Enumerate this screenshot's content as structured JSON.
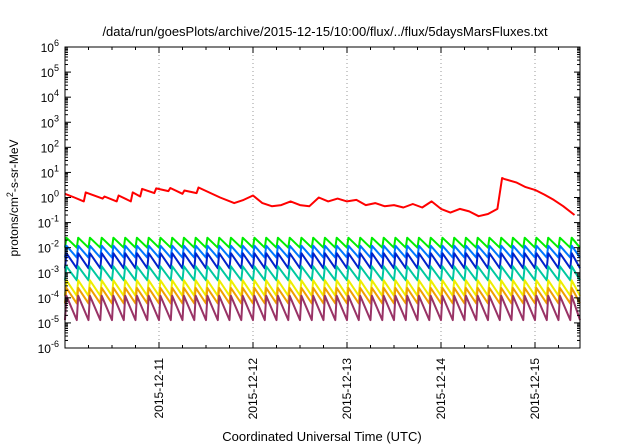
{
  "chart_data": {
    "type": "line",
    "title": "/data/run/goesPlots/archive/2015-12-15/10:00/flux/../flux/5daysMarsFluxes.txt",
    "xlabel": "Coordinated Universal Time (UTC)",
    "ylabel_base": "protons/cm",
    "ylabel_sup": "2",
    "ylabel_rest": "-s-sr-MeV",
    "yscale": "log",
    "ylim_exp": [
      -6,
      6
    ],
    "ytick_base": "10",
    "yticks": [
      {
        "exp": -6,
        "sup": "-6"
      },
      {
        "exp": -5,
        "sup": "-5"
      },
      {
        "exp": -4,
        "sup": "-4"
      },
      {
        "exp": -3,
        "sup": "-3"
      },
      {
        "exp": -2,
        "sup": "-2"
      },
      {
        "exp": -1,
        "sup": "-1"
      },
      {
        "exp": 0,
        "sup": "0"
      },
      {
        "exp": 1,
        "sup": "1"
      },
      {
        "exp": 2,
        "sup": "2"
      },
      {
        "exp": 3,
        "sup": "3"
      },
      {
        "exp": 4,
        "sup": "4"
      },
      {
        "exp": 5,
        "sup": "5"
      },
      {
        "exp": 6,
        "sup": "6"
      }
    ],
    "xlim": [
      "2015-12-10 00:00",
      "2015-12-15 10:00"
    ],
    "xticks": [
      {
        "label": "2015-12-11",
        "day": 1
      },
      {
        "label": "2015-12-12",
        "day": 2
      },
      {
        "label": "2015-12-13",
        "day": 3
      },
      {
        "label": "2015-12-14",
        "day": 4
      },
      {
        "label": "2015-12-15",
        "day": 5
      }
    ],
    "grid": true,
    "x_grid": true,
    "y_grid": false,
    "series": [
      {
        "color": "#ff0000",
        "x_days": [
          0.0,
          0.1,
          0.2,
          0.22,
          0.4,
          0.42,
          0.55,
          0.57,
          0.7,
          0.72,
          0.8,
          0.82,
          0.95,
          0.97,
          1.1,
          1.12,
          1.25,
          1.27,
          1.4,
          1.42,
          1.65,
          1.8,
          1.9,
          2.0,
          2.1,
          2.2,
          2.3,
          2.4,
          2.5,
          2.6,
          2.7,
          2.8,
          2.9,
          3.0,
          3.1,
          3.2,
          3.3,
          3.4,
          3.5,
          3.6,
          3.7,
          3.8,
          3.9,
          4.0,
          4.1,
          4.2,
          4.3,
          4.4,
          4.5,
          4.6,
          4.65,
          4.67,
          4.8,
          4.9,
          5.0,
          5.1,
          5.2,
          5.3,
          5.42
        ],
        "y": [
          1.4,
          1.0,
          0.7,
          1.6,
          0.9,
          1.1,
          0.7,
          1.2,
          0.7,
          1.6,
          1.1,
          2.2,
          1.5,
          2.3,
          1.8,
          2.4,
          1.4,
          1.9,
          1.5,
          2.5,
          1.0,
          0.6,
          0.8,
          1.2,
          0.6,
          0.45,
          0.5,
          0.7,
          0.5,
          0.45,
          1.0,
          0.7,
          0.9,
          0.7,
          0.8,
          0.5,
          0.6,
          0.45,
          0.5,
          0.4,
          0.55,
          0.4,
          0.7,
          0.35,
          0.25,
          0.35,
          0.28,
          0.18,
          0.22,
          0.35,
          6.0,
          5.5,
          4.0,
          2.6,
          2.0,
          1.3,
          0.8,
          0.45,
          0.2
        ]
      },
      {
        "color": "#00ee00",
        "base": 0.015,
        "trough": 0.01,
        "peak": 0.025
      },
      {
        "color": "#0077ff",
        "base": 0.008,
        "trough": 0.004,
        "peak": 0.012
      },
      {
        "color": "#0022cc",
        "base": 0.003,
        "trough": 0.0015,
        "peak": 0.006
      },
      {
        "color": "#00c8a0",
        "base": 0.0009,
        "trough": 0.0005,
        "peak": 0.0018
      },
      {
        "color": "#eeee00",
        "base": 0.00022,
        "trough": 0.00012,
        "peak": 0.0005
      },
      {
        "color": "#f0a000",
        "base": 0.00012,
        "trough": 6e-05,
        "peak": 0.00025
      },
      {
        "color": "#993366",
        "base": 3e-05,
        "trough": 1.3e-05,
        "peak": 0.00012
      }
    ],
    "cycle_days": 0.125
  }
}
